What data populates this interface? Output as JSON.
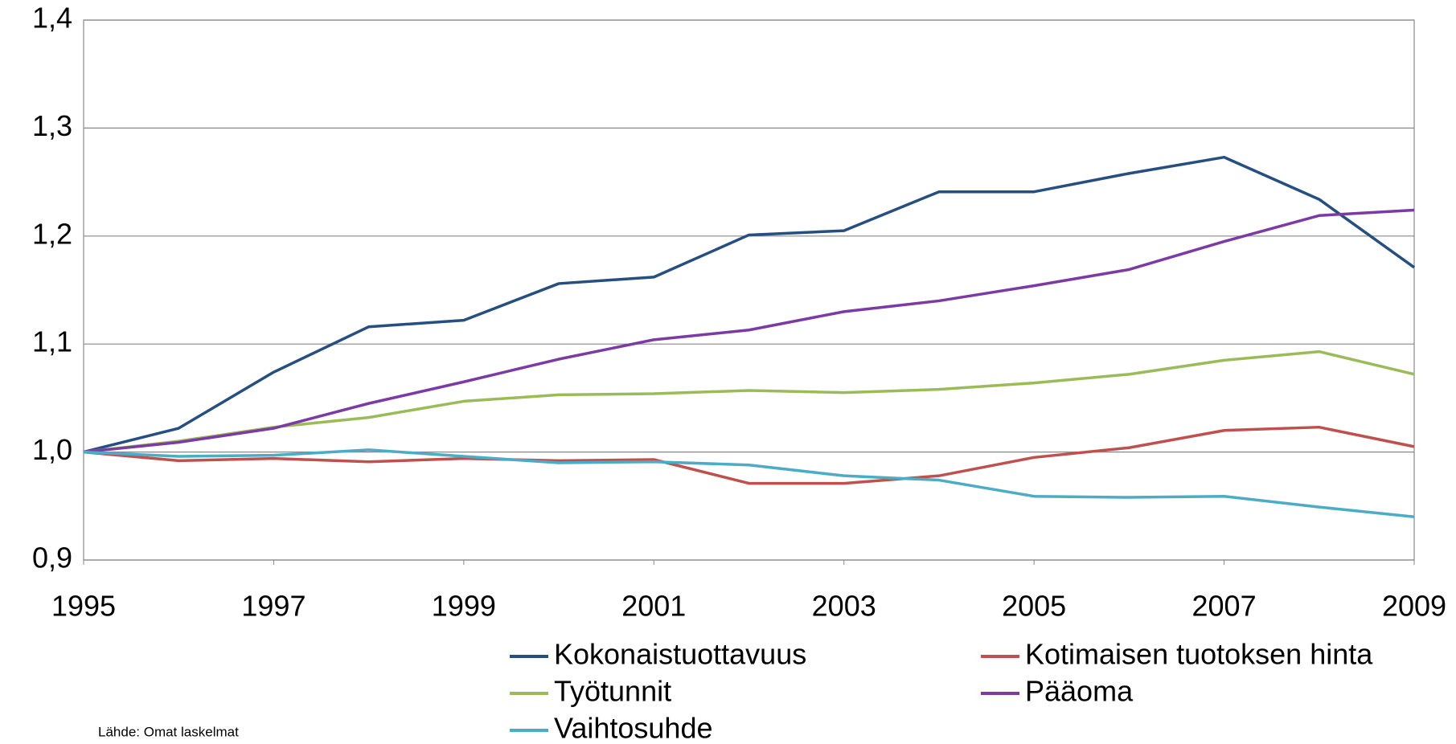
{
  "chart_data": {
    "type": "line",
    "x": [
      1995,
      1996,
      1997,
      1998,
      1999,
      2000,
      2001,
      2002,
      2003,
      2004,
      2005,
      2006,
      2007,
      2008,
      2009
    ],
    "series": [
      {
        "name": "Kokonaistuottavuus",
        "color": "#254f80",
        "values": [
          1.0,
          1.022,
          1.074,
          1.116,
          1.122,
          1.156,
          1.162,
          1.201,
          1.205,
          1.241,
          1.241,
          1.258,
          1.273,
          1.234,
          1.171
        ]
      },
      {
        "name": "Kotimaisen tuotoksen hinta",
        "color": "#c0504d",
        "values": [
          1.0,
          0.992,
          0.994,
          0.991,
          0.994,
          0.992,
          0.993,
          0.971,
          0.971,
          0.978,
          0.995,
          1.004,
          1.02,
          1.023,
          1.005
        ]
      },
      {
        "name": "Työtunnit",
        "color": "#9bbb59",
        "values": [
          1.0,
          1.01,
          1.023,
          1.032,
          1.047,
          1.053,
          1.054,
          1.057,
          1.055,
          1.058,
          1.064,
          1.072,
          1.085,
          1.093,
          1.072
        ]
      },
      {
        "name": "Pääoma",
        "color": "#7b3aa4",
        "values": [
          1.0,
          1.009,
          1.022,
          1.045,
          1.065,
          1.086,
          1.104,
          1.113,
          1.13,
          1.14,
          1.154,
          1.169,
          1.195,
          1.219,
          1.224
        ]
      },
      {
        "name": "Vaihtosuhde",
        "color": "#4bacc6",
        "values": [
          1.0,
          0.996,
          0.997,
          1.002,
          0.996,
          0.99,
          0.991,
          0.988,
          0.978,
          0.974,
          0.959,
          0.958,
          0.959,
          0.949,
          0.94
        ]
      }
    ],
    "xlim": [
      1995,
      2009
    ],
    "xticks": [
      1995,
      1997,
      1999,
      2001,
      2003,
      2005,
      2007,
      2009
    ],
    "ylim": [
      0.9,
      1.4
    ],
    "yticks": [
      {
        "value": 0.9,
        "label": "0,9"
      },
      {
        "value": 1.0,
        "label": "1,0"
      },
      {
        "value": 1.1,
        "label": "1,1"
      },
      {
        "value": 1.2,
        "label": "1,2"
      },
      {
        "value": 1.3,
        "label": "1,3"
      },
      {
        "value": 1.4,
        "label": "1,4"
      }
    ],
    "grid": true,
    "annotation": "Lähde: Omat laskelmat"
  }
}
